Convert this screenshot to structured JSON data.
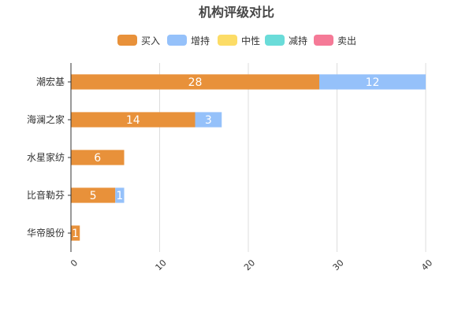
{
  "colors": {
    "买入": "#E8913A",
    "增持": "#95C1FA",
    "中性": "#FCDC66",
    "减持": "#6ADCD9",
    "卖出": "#F57A97",
    "axis": "#333333",
    "grid": "#dddddd",
    "title": "#464646"
  },
  "chart_data": {
    "type": "bar",
    "orientation": "horizontal",
    "stacked": true,
    "title": "机构评级对比",
    "legend_position": "top",
    "grid": true,
    "xlabel": "",
    "ylabel": "",
    "xlim": [
      0,
      40
    ],
    "x_ticks": [
      0,
      10,
      20,
      30,
      40
    ],
    "categories": [
      "潮宏基",
      "海澜之家",
      "水星家纺",
      "比音勒芬",
      "华帝股份"
    ],
    "series": [
      {
        "name": "买入",
        "values": [
          28,
          14,
          6,
          5,
          1
        ]
      },
      {
        "name": "增持",
        "values": [
          12,
          3,
          0,
          1,
          0
        ]
      },
      {
        "name": "中性",
        "values": [
          0,
          0,
          0,
          0,
          0
        ]
      },
      {
        "name": "减持",
        "values": [
          0,
          0,
          0,
          0,
          0
        ]
      },
      {
        "name": "卖出",
        "values": [
          0,
          0,
          0,
          0,
          0
        ]
      }
    ]
  }
}
